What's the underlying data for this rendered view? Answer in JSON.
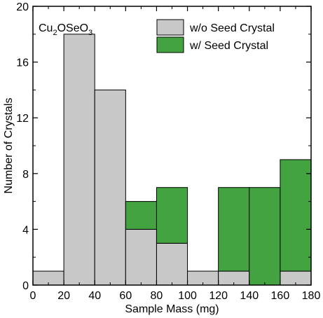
{
  "chart_data": {
    "type": "bar",
    "stacked": true,
    "xlabel": "Sample Mass (mg)",
    "ylabel": "Number of Crystals",
    "xlim": [
      0,
      180
    ],
    "ylim": [
      0,
      20
    ],
    "x_ticks": [
      0,
      20,
      40,
      60,
      80,
      100,
      120,
      140,
      160,
      180
    ],
    "y_ticks": [
      0,
      4,
      8,
      12,
      16,
      20
    ],
    "bin_edges": [
      0,
      20,
      40,
      60,
      80,
      100,
      120,
      140,
      160,
      180
    ],
    "series": [
      {
        "name": "w/o Seed Crystal",
        "color": "#c8c8c8",
        "values": [
          1,
          18,
          14,
          4,
          3,
          1,
          1,
          0,
          1
        ]
      },
      {
        "name": "w/ Seed Crystal",
        "color": "#43a340",
        "values": [
          0,
          0,
          0,
          2,
          4,
          0,
          6,
          7,
          8
        ]
      }
    ],
    "annotation": {
      "base": "Cu",
      "sub1": "2",
      "mid": "OSeO",
      "sub2": "3"
    },
    "legend_position": "top-right",
    "grid": false
  }
}
